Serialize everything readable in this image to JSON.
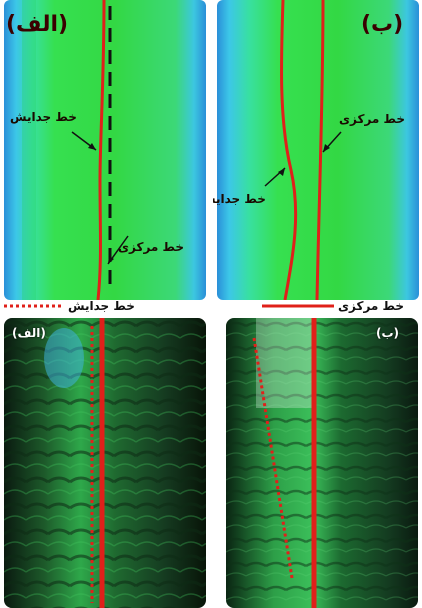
{
  "top_left_panel": {
    "panel_label": "(الف)",
    "separation_line_label": "خط جدایش",
    "center_line_label": "خط مرکزی"
  },
  "top_right_panel": {
    "panel_label": "(ب)",
    "center_line_label": "خط مرکزی",
    "separation_line_label": "خط جدایش"
  },
  "legend": {
    "separation_line": "خط جدایش",
    "center_line": "خط مرکزی"
  },
  "bottom_left_photo": {
    "panel_label": "(الف)"
  },
  "bottom_right_photo": {
    "panel_label": "(ب)"
  },
  "colors": {
    "line_red": "#e0201a",
    "field_green": "#33e04a",
    "edge_blue": "#2fa9e6",
    "photo_dark": "#0c2a14"
  }
}
